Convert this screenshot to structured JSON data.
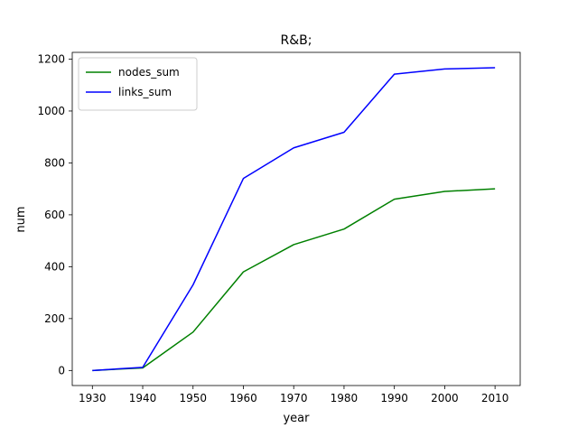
{
  "chart_data": {
    "type": "line",
    "title": "R&B;",
    "xlabel": "year",
    "ylabel": "num",
    "x": [
      1930,
      1940,
      1950,
      1960,
      1970,
      1980,
      1990,
      2000,
      2010
    ],
    "xticks": [
      "1930",
      "1940",
      "1950",
      "1960",
      "1970",
      "1980",
      "1990",
      "2000",
      "2010"
    ],
    "yticks": [
      "0",
      "200",
      "400",
      "600",
      "800",
      "1000",
      "1200"
    ],
    "xlim": [
      1926,
      2015
    ],
    "ylim": [
      -58,
      1226
    ],
    "grid": false,
    "legend_position": "top-left",
    "series": [
      {
        "name": "nodes_sum",
        "color": "#008000",
        "values": [
          0,
          10,
          148,
          380,
          485,
          545,
          660,
          690,
          700
        ]
      },
      {
        "name": "links_sum",
        "color": "#0000ff",
        "values": [
          0,
          12,
          330,
          740,
          858,
          918,
          1142,
          1162,
          1167
        ]
      }
    ]
  }
}
